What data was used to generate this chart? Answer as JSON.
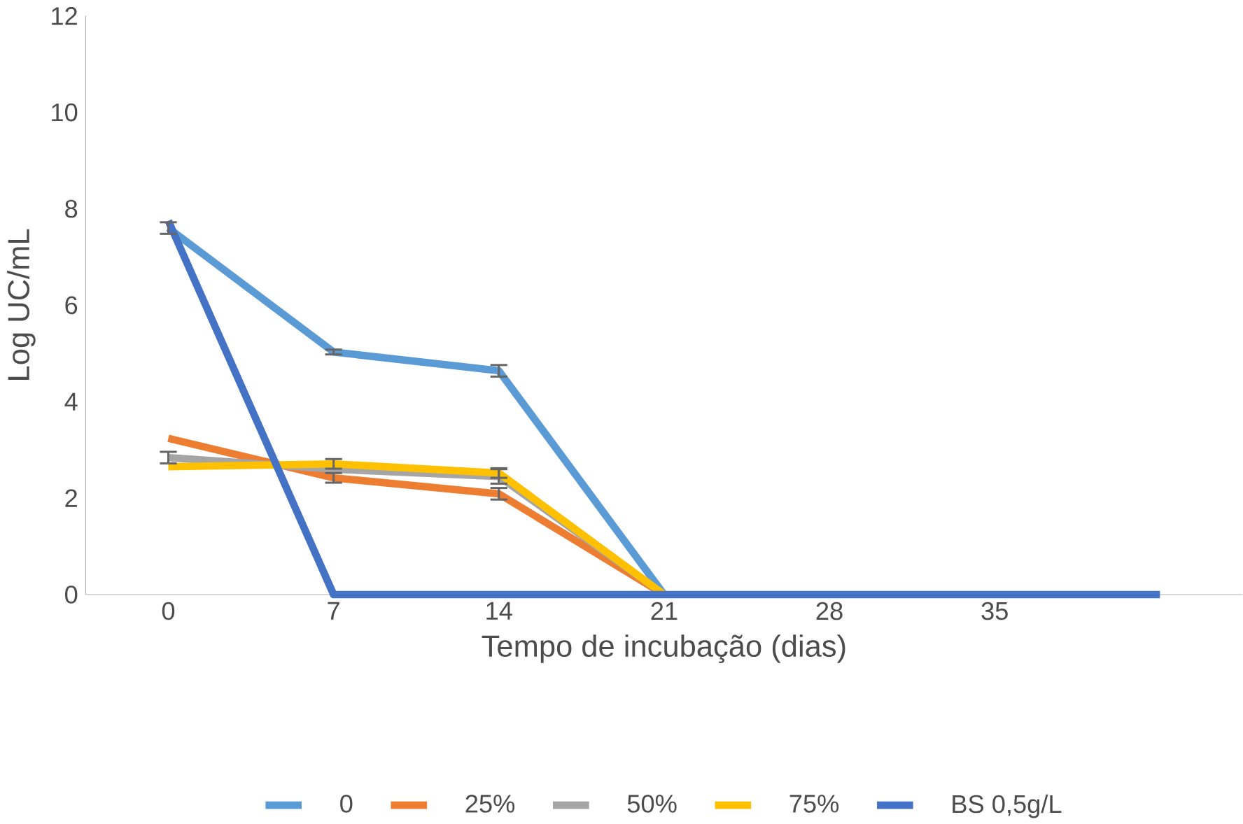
{
  "chart_data": {
    "type": "line",
    "xlabel": "Tempo de incubação (dias)",
    "ylabel": "Log UC/mL",
    "categories": [
      "0",
      "7",
      "14",
      "21",
      "28",
      "35",
      null
    ],
    "series": [
      {
        "name": "0",
        "color": "#5b9bd5",
        "values": [
          7.6,
          5.03,
          4.64,
          0,
          null,
          null,
          null
        ],
        "errors": [
          0.12,
          0.05,
          0.12,
          null,
          null,
          null,
          null
        ]
      },
      {
        "name": "25%",
        "color": "#ed7d31",
        "values": [
          3.24,
          2.42,
          2.09,
          0,
          null,
          null,
          null
        ],
        "errors": [
          null,
          0.1,
          0.12,
          null,
          null,
          null,
          null
        ]
      },
      {
        "name": "50%",
        "color": "#a5a5a5",
        "values": [
          2.84,
          2.6,
          2.45,
          0,
          null,
          null,
          null
        ],
        "errors": [
          0.12,
          null,
          0.15,
          null,
          null,
          null,
          null
        ]
      },
      {
        "name": "75%",
        "color": "#ffc000",
        "values": [
          2.65,
          2.71,
          2.52,
          0,
          null,
          null,
          null
        ],
        "errors": [
          null,
          0.1,
          0.1,
          null,
          null,
          null,
          null
        ]
      },
      {
        "name": "BS 0,5g/L",
        "color": "#4472c4",
        "values": [
          7.75,
          0,
          0,
          0,
          0,
          0,
          0
        ]
      }
    ],
    "ylim": [
      0,
      12
    ],
    "yticks": [
      0,
      2,
      4,
      6,
      8,
      10,
      12
    ],
    "grid": false,
    "legend": "bottom",
    "marker": "none",
    "line_style": "solid"
  }
}
